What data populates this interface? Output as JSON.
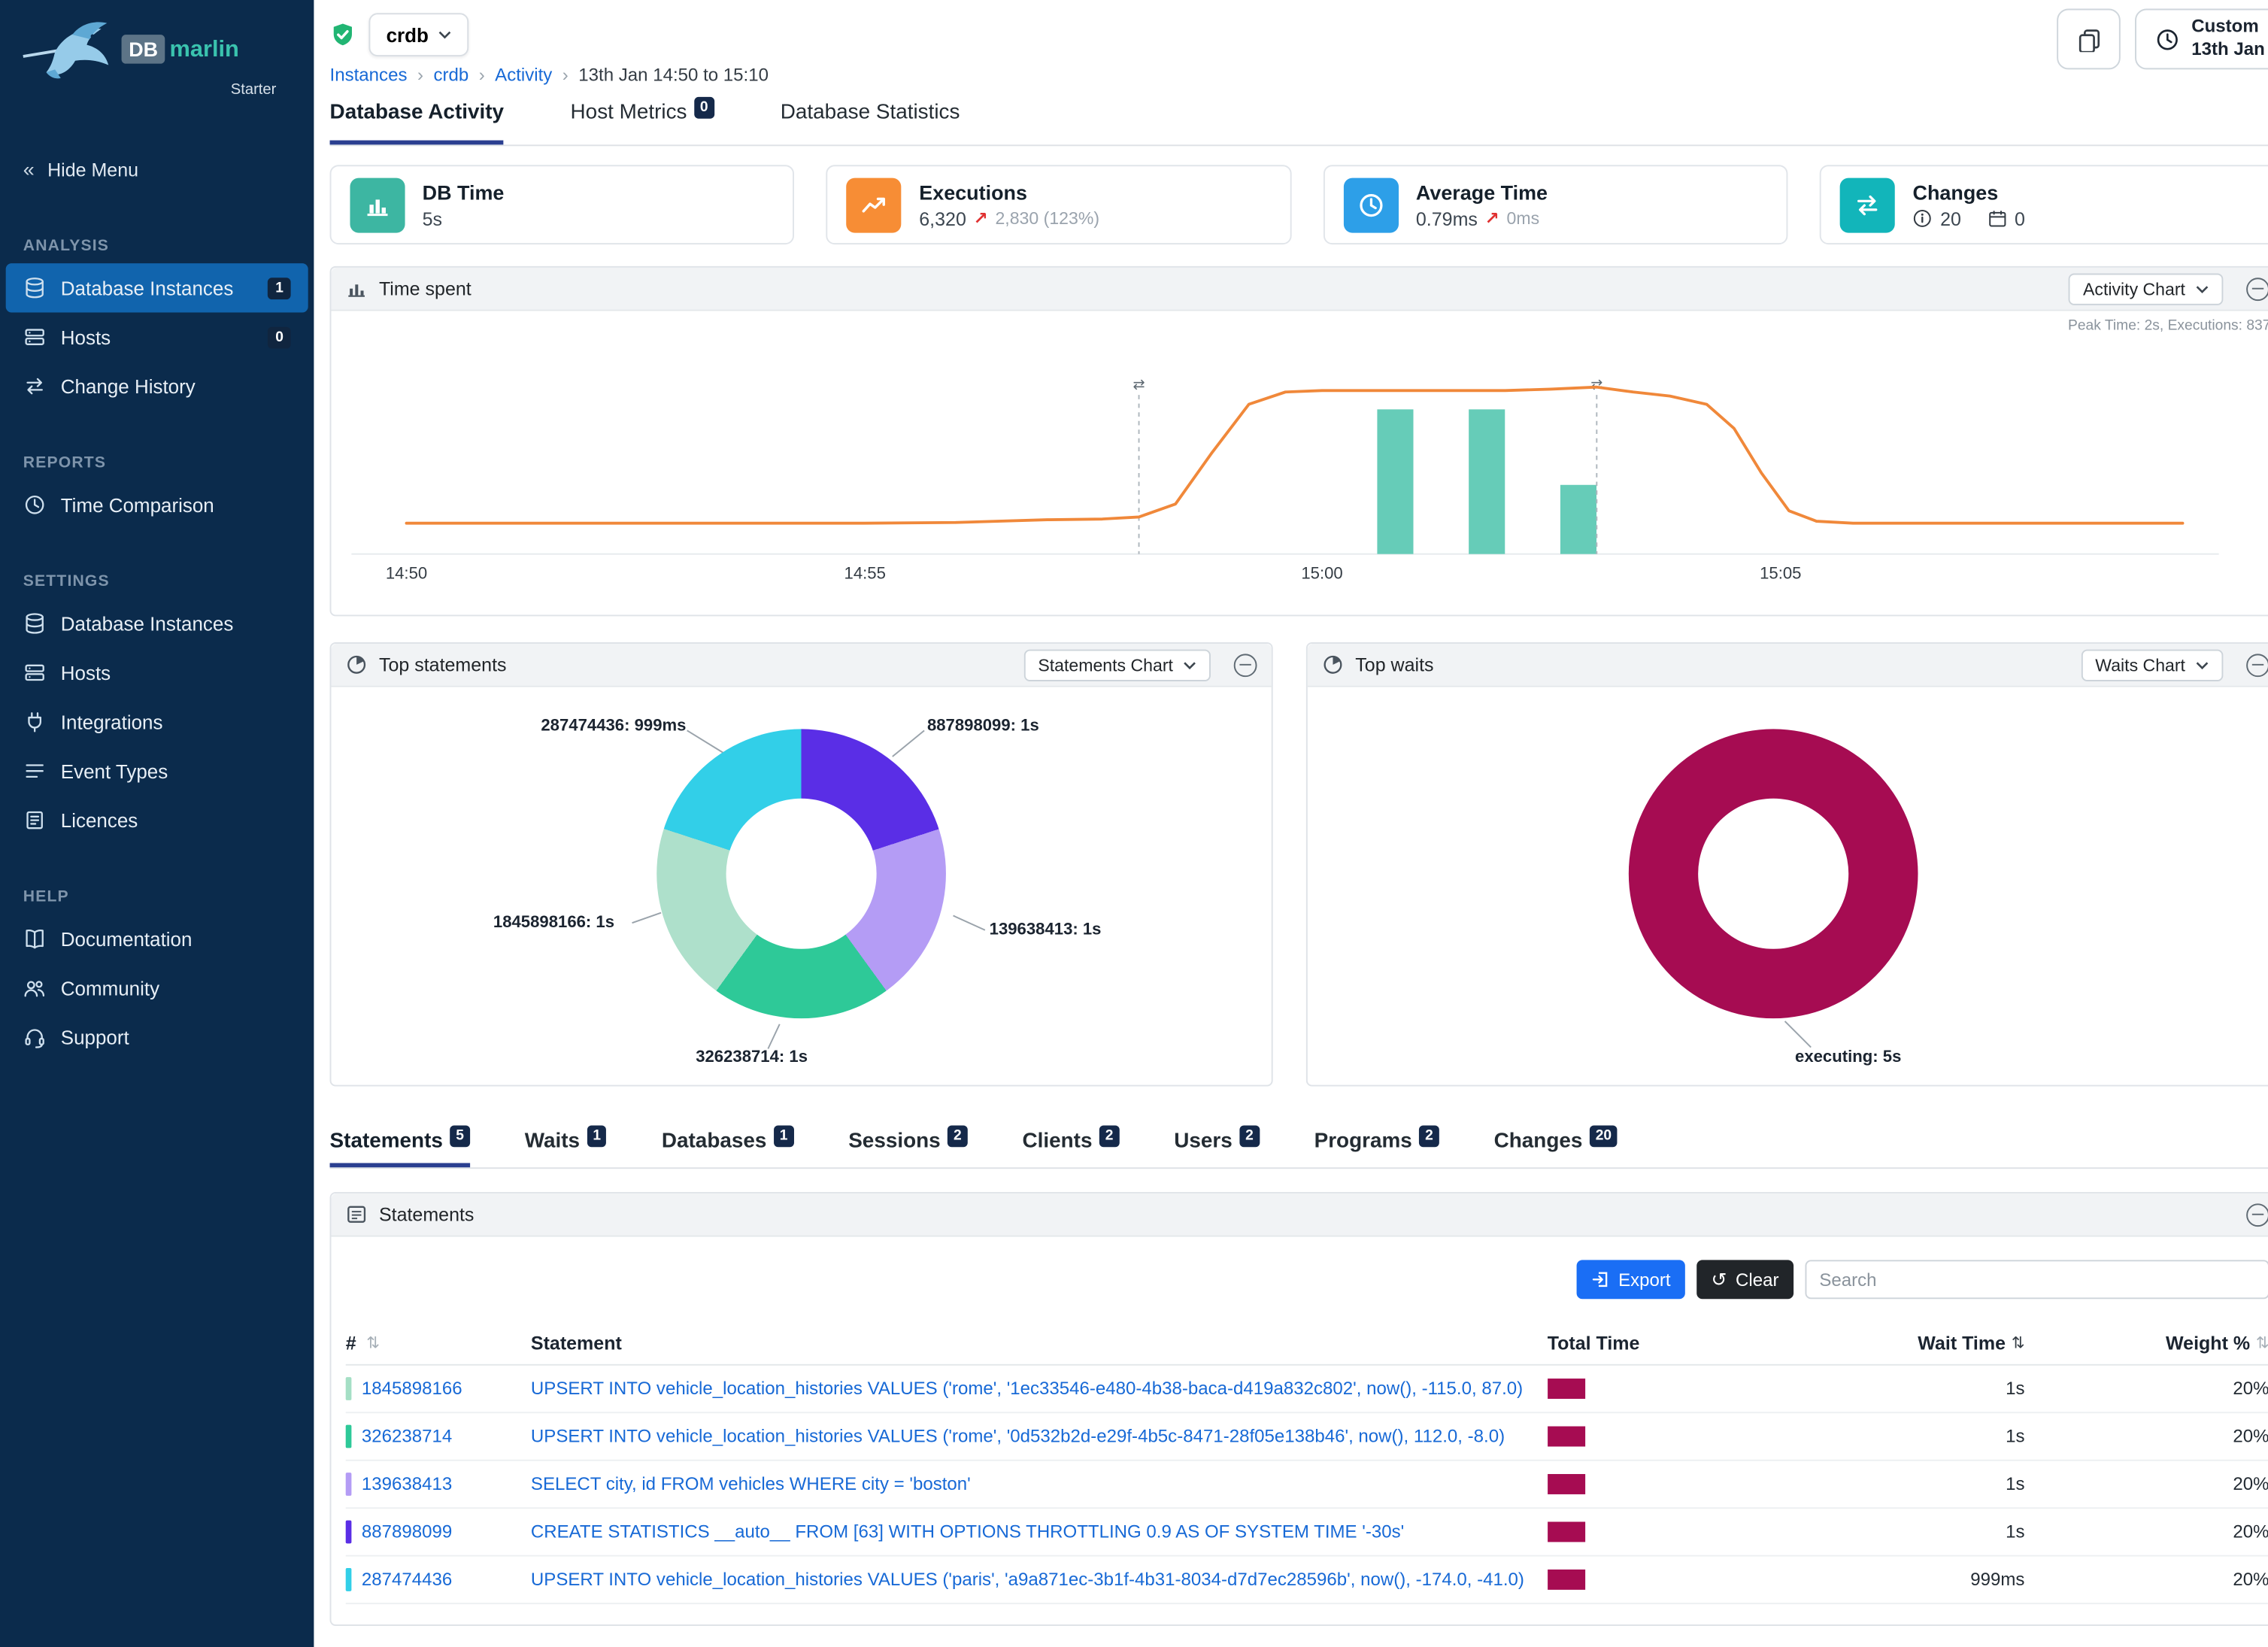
{
  "icons": {
    "sort": "⇅",
    "clear": "↺",
    "up_right_arrow": "↗",
    "double_chevron_left": "«",
    "breadcrumb_separator": "›"
  },
  "brand": {
    "db": "DB",
    "marlin": "marlin",
    "plan": "Starter"
  },
  "sidebar": {
    "hide_menu": "Hide Menu",
    "sections": [
      {
        "label": "ANALYSIS",
        "items": [
          {
            "label": "Database Instances",
            "badge": "1"
          },
          {
            "label": "Hosts",
            "badge": "0"
          },
          {
            "label": "Change History"
          }
        ]
      },
      {
        "label": "REPORTS",
        "items": [
          {
            "label": "Time Comparison"
          }
        ]
      },
      {
        "label": "SETTINGS",
        "items": [
          {
            "label": "Database Instances"
          },
          {
            "label": "Hosts"
          },
          {
            "label": "Integrations"
          },
          {
            "label": "Event Types"
          },
          {
            "label": "Licences"
          }
        ]
      },
      {
        "label": "HELP",
        "items": [
          {
            "label": "Documentation"
          },
          {
            "label": "Community"
          },
          {
            "label": "Support"
          }
        ]
      }
    ]
  },
  "header": {
    "instance": "crdb",
    "breadcrumb": {
      "links": [
        "Instances",
        "crdb",
        "Activity"
      ],
      "current": "13th Jan 14:50 to 15:10"
    },
    "time_button": {
      "line1": "Custom",
      "line2": "13th Jan"
    }
  },
  "main_tabs": [
    {
      "label": "Database Activity"
    },
    {
      "label": "Host Metrics",
      "badge": "0"
    },
    {
      "label": "Database Statistics"
    }
  ],
  "metric_cards": {
    "db_time": {
      "title": "DB Time",
      "value": "5s",
      "color": "#3db6a2"
    },
    "executions": {
      "title": "Executions",
      "value": "6,320",
      "delta": "2,830 (123%)",
      "color": "#f78d35"
    },
    "average_time": {
      "title": "Average Time",
      "value": "0.79ms",
      "delta": "0ms",
      "color": "#2d9fe8"
    },
    "changes": {
      "title": "Changes",
      "info_count": "20",
      "calendar_count": "0",
      "color": "#12b5ba"
    }
  },
  "time_spent": {
    "title": "Time spent",
    "chart_button": "Activity Chart",
    "peak_note": "Peak Time: 2s, Executions: 837",
    "x_ticks": [
      "14:50",
      "14:55",
      "15:00",
      "15:05"
    ]
  },
  "top_statements": {
    "title": "Top statements",
    "chart_button": "Statements Chart",
    "labels": {
      "s1": "887898099: 1s",
      "s2": "139638413: 1s",
      "s3": "326238714: 1s",
      "s4": "1845898166: 1s",
      "s5": "287474436: 999ms"
    }
  },
  "top_waits": {
    "title": "Top waits",
    "chart_button": "Waits Chart",
    "label": "executing: 5s"
  },
  "detail_tabs": [
    {
      "label": "Statements",
      "badge": "5"
    },
    {
      "label": "Waits",
      "badge": "1"
    },
    {
      "label": "Databases",
      "badge": "1"
    },
    {
      "label": "Sessions",
      "badge": "2"
    },
    {
      "label": "Clients",
      "badge": "2"
    },
    {
      "label": "Users",
      "badge": "2"
    },
    {
      "label": "Programs",
      "badge": "2"
    },
    {
      "label": "Changes",
      "badge": "20"
    }
  ],
  "statements_table": {
    "title": "Statements",
    "export_label": "Export",
    "clear_label": "Clear",
    "search_placeholder": "Search",
    "columns": [
      "#",
      "Statement",
      "Total Time",
      "Wait Time",
      "Weight %"
    ],
    "rows": [
      {
        "id": "1845898166",
        "color": "#a5dfc5",
        "statement": "UPSERT INTO vehicle_location_histories VALUES ('rome', '1ec33546-e480-4b38-baca-d419a832c802', now(), -115.0, 87.0)",
        "wait_time": "1s",
        "weight": "20%"
      },
      {
        "id": "326238714",
        "color": "#2ec998",
        "statement": "UPSERT INTO vehicle_location_histories VALUES ('rome', '0d532b2d-e29f-4b5c-8471-28f05e138b46', now(), 112.0, -8.0)",
        "wait_time": "1s",
        "weight": "20%"
      },
      {
        "id": "139638413",
        "color": "#b49cf5",
        "statement": "SELECT city, id FROM vehicles WHERE city = 'boston'",
        "wait_time": "1s",
        "weight": "20%"
      },
      {
        "id": "887898099",
        "color": "#5a2ee6",
        "statement": "CREATE STATISTICS __auto__ FROM [63] WITH OPTIONS THROTTLING 0.9 AS OF SYSTEM TIME '-30s'",
        "wait_time": "1s",
        "weight": "20%"
      },
      {
        "id": "287474436",
        "color": "#32cfe8",
        "statement": "UPSERT INTO vehicle_location_histories VALUES ('paris', 'a9a871ec-3b1f-4b31-8034-d7d7ec28596b', now(), -174.0, -41.0)",
        "wait_time": "999ms",
        "weight": "20%"
      }
    ]
  },
  "chart_data": [
    {
      "type": "line",
      "title": "Time spent",
      "x_unit": "minutes after 14:50",
      "x_ticks": [
        "14:50",
        "14:55",
        "15:00",
        "15:05"
      ],
      "annotations": [
        "Peak Time: 2s, Executions: 837"
      ],
      "series": [
        {
          "name": "DB Time (s)",
          "color": "#f0883a",
          "points": [
            [
              0,
              0.07
            ],
            [
              1,
              0.07
            ],
            [
              2,
              0.07
            ],
            [
              3,
              0.07
            ],
            [
              4,
              0.07
            ],
            [
              5,
              0.07
            ],
            [
              6,
              0.08
            ],
            [
              7,
              0.12
            ],
            [
              7.6,
              0.13
            ],
            [
              8,
              0.16
            ],
            [
              8.4,
              0.35
            ],
            [
              8.8,
              1.1
            ],
            [
              9.2,
              1.8
            ],
            [
              9.6,
              1.98
            ],
            [
              10,
              2.0
            ],
            [
              10.5,
              2.0
            ],
            [
              11,
              2.0
            ],
            [
              11.5,
              2.0
            ],
            [
              12,
              2.0
            ],
            [
              12.5,
              2.02
            ],
            [
              13,
              2.05
            ],
            [
              13.4,
              1.98
            ],
            [
              13.8,
              1.92
            ],
            [
              14.2,
              1.8
            ],
            [
              14.5,
              1.45
            ],
            [
              14.8,
              0.8
            ],
            [
              15.1,
              0.25
            ],
            [
              15.4,
              0.1
            ],
            [
              15.8,
              0.07
            ],
            [
              16.5,
              0.07
            ],
            [
              17.5,
              0.07
            ],
            [
              18.5,
              0.07
            ],
            [
              19.4,
              0.07
            ]
          ]
        }
      ],
      "bars": {
        "name": "Executions",
        "color": "#66ccb8",
        "max": 837,
        "points": [
          [
            10.8,
            837
          ],
          [
            11.8,
            837
          ],
          [
            12.8,
            400
          ]
        ]
      },
      "change_markers_minutes": [
        8,
        13
      ]
    },
    {
      "type": "pie",
      "title": "Top statements",
      "labels": [
        "887898099",
        "139638413",
        "326238714",
        "1845898166",
        "287474436"
      ],
      "values_ms": [
        1000,
        1000,
        1000,
        1000,
        999
      ],
      "colors": [
        "#5a2ee6",
        "#b49cf5",
        "#2ec998",
        "#aee0cb",
        "#32cfe8"
      ]
    },
    {
      "type": "pie",
      "title": "Top waits",
      "labels": [
        "executing"
      ],
      "values_s": [
        5
      ],
      "colors": [
        "#a60c52"
      ]
    }
  ]
}
